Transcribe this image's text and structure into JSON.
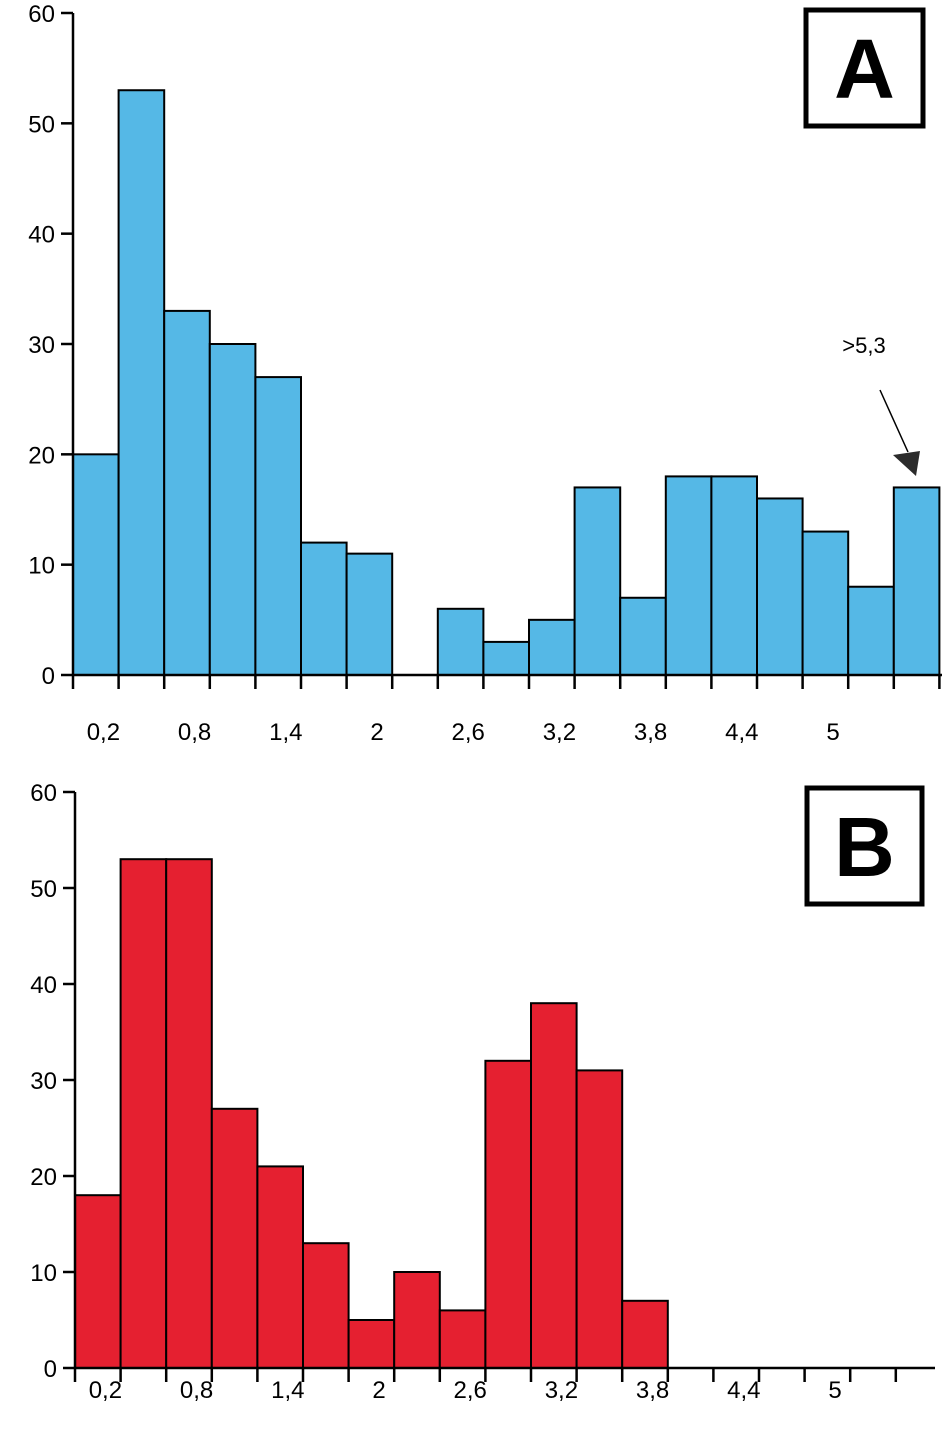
{
  "chart_data": [
    {
      "type": "bar",
      "panel_label": "A",
      "color": "#55b8e6",
      "ylim": [
        0,
        60
      ],
      "y_ticks": [
        "0",
        "10",
        "20",
        "30",
        "40",
        "50",
        "60"
      ],
      "x_tick_labels": [
        "0,2",
        "0,8",
        "1,4",
        "2",
        "2,6",
        "3,2",
        "3,8",
        "4,4",
        "5"
      ],
      "bin_width": 0.3,
      "bins_start": [
        0.0,
        0.3,
        0.6,
        0.9,
        1.2,
        1.5,
        1.8,
        2.1,
        2.4,
        2.7,
        3.0,
        3.3,
        3.6,
        3.9,
        4.2,
        4.5,
        4.8,
        5.1,
        5.4
      ],
      "values": [
        20,
        53,
        33,
        30,
        27,
        12,
        11,
        0,
        6,
        3,
        5,
        17,
        7,
        18,
        18,
        16,
        13,
        8,
        17
      ],
      "annotation": ">5,3",
      "grid": false
    },
    {
      "type": "bar",
      "panel_label": "B",
      "color": "#e52030",
      "ylim": [
        0,
        60
      ],
      "y_ticks": [
        "0",
        "10",
        "20",
        "30",
        "40",
        "50",
        "60"
      ],
      "x_tick_labels": [
        "0,2",
        "0,8",
        "1,4",
        "2",
        "2,6",
        "3,2",
        "3,8",
        "4,4",
        "5"
      ],
      "bin_width": 0.3,
      "bins_start": [
        0.0,
        0.3,
        0.6,
        0.9,
        1.2,
        1.5,
        1.8,
        2.1,
        2.4,
        2.7,
        3.0,
        3.3,
        3.6
      ],
      "values": [
        18,
        53,
        53,
        27,
        21,
        13,
        5,
        10,
        6,
        32,
        38,
        31,
        7
      ],
      "grid": false
    }
  ]
}
